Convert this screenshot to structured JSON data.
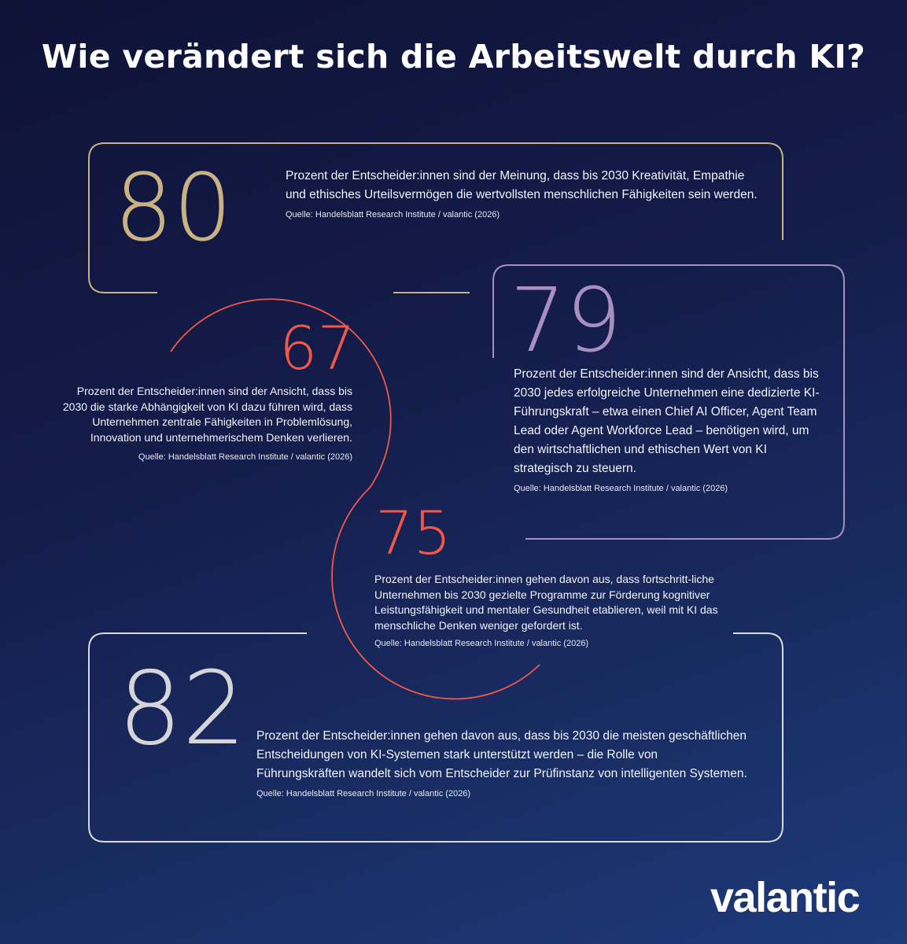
{
  "title": "Wie verändert sich die Arbeitswelt durch KI?",
  "colors": {
    "gold": "#c8b283",
    "purple": "#a78fc2",
    "coral": "#f0584a",
    "white": "#d9d9de"
  },
  "stats": [
    {
      "value": "80",
      "text": "Prozent der Entscheider:innen sind der Meinung, dass bis 2030 Kreativität, Empathie und ethisches Urteilsvermögen die wertvollsten menschlichen Fähigkeiten sein werden.",
      "source": "Quelle: Handelsblatt Research Institute / valantic (2026)"
    },
    {
      "value": "67",
      "text": "Prozent der Entscheider:innen sind der Ansicht, dass bis 2030 die starke Abhängigkeit von KI dazu führen wird, dass Unternehmen zentrale Fähigkeiten in Problemlösung, Innovation und unternehmerischem Denken verlieren.",
      "source": "Quelle: Handelsblatt Research Institute / valantic (2026)"
    },
    {
      "value": "79",
      "text": "Prozent der Entscheider:innen sind der Ansicht, dass bis 2030 jedes erfolgreiche Unternehmen eine dedizierte KI-Führungskraft – etwa einen Chief AI Officer, Agent Team Lead oder Agent Workforce Lead – benötigen wird, um den wirtschaftlichen und ethischen Wert von KI strategisch zu steuern.",
      "source": "Quelle: Handelsblatt Research Institute / valantic (2026)"
    },
    {
      "value": "75",
      "text": "Prozent der Entscheider:innen gehen davon aus, dass fortschritt-liche Unternehmen bis 2030 gezielte Programme zur Förderung kognitiver Leistungsfähigkeit und mentaler Gesundheit etablieren, weil mit KI das menschliche Denken weniger gefordert ist.",
      "source": "Quelle: Handelsblatt Research Institute / valantic (2026)"
    },
    {
      "value": "82",
      "text": "Prozent der Entscheider:innen gehen davon aus, dass bis 2030 die meisten geschäftlichen Entscheidungen von KI-Systemen stark unterstützt werden – die Rolle von Führungskräften wandelt sich vom Entscheider zur Prüfinstanz von intelligenten Systemen.",
      "source": "Quelle: Handelsblatt Research Institute / valantic (2026)"
    }
  ],
  "logo": "valantic"
}
